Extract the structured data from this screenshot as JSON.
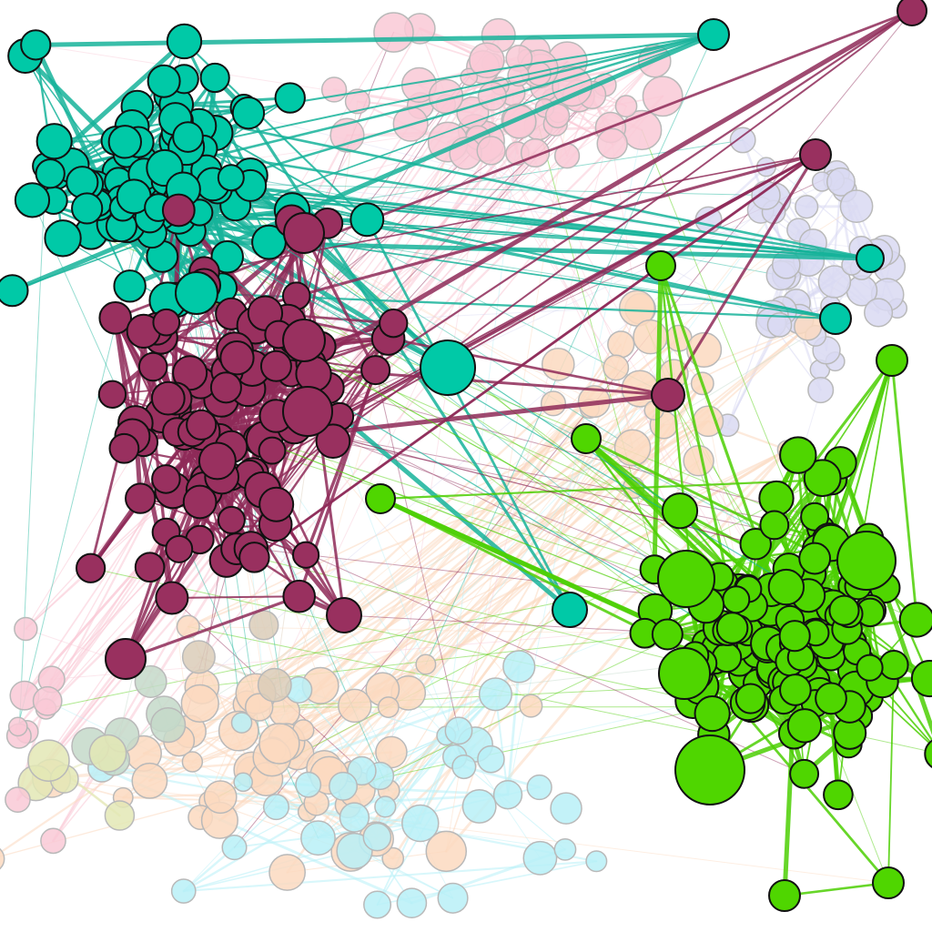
{
  "graph": {
    "background": "#ffffff",
    "highlighted_communities": [
      {
        "id": "teal",
        "color": "#00c9a7",
        "edge_color": "#16b39a"
      },
      {
        "id": "maroon",
        "color": "#99305f",
        "edge_color": "#8e2a58"
      },
      {
        "id": "green",
        "color": "#4fd600",
        "edge_color": "#4ccf04"
      }
    ],
    "faded_communities": [
      {
        "id": "pink",
        "color": "#f9c9d6"
      },
      {
        "id": "lavender",
        "color": "#d9d9f2"
      },
      {
        "id": "peach",
        "color": "#fcd9bf"
      },
      {
        "id": "light-cyan",
        "color": "#b8f0f7"
      },
      {
        "id": "sage",
        "color": "#c4d9c9"
      },
      {
        "id": "olive",
        "color": "#e3e8b5"
      },
      {
        "id": "tan",
        "color": "#dbcdb8"
      }
    ],
    "node_stroke_highlighted": "#111111",
    "node_stroke_faded": "#b9b9b9"
  }
}
